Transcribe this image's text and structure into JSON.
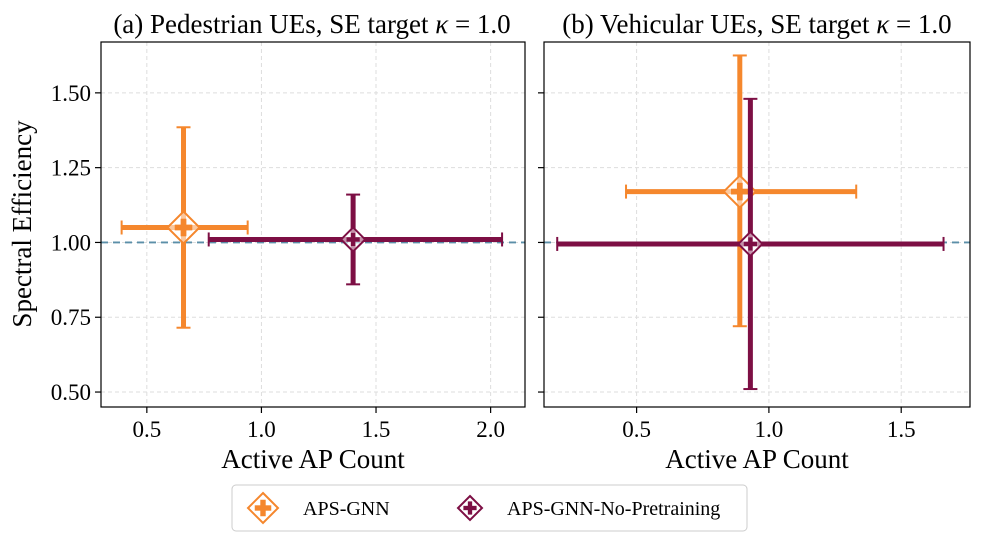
{
  "chart_data": [
    {
      "type": "scatter",
      "title": "(a) Pedestrian UEs, SE target κ = 1.0",
      "xlabel": "Active AP Count",
      "ylabel": "Spectral Efficiency",
      "xlim": [
        0.3,
        2.15
      ],
      "ylim": [
        0.45,
        1.67
      ],
      "xticks": [
        0.5,
        1.0,
        1.5,
        2.0
      ],
      "xtick_labels": [
        "0.5",
        "1.0",
        "1.5",
        "2.0"
      ],
      "yticks": [
        0.5,
        0.75,
        1.0,
        1.25,
        1.5
      ],
      "ytick_labels": [
        "0.50",
        "0.75",
        "1.00",
        "1.25",
        "1.50"
      ],
      "grid": true,
      "reference_line_y": 1.0,
      "series": [
        {
          "name": "APS-GNN",
          "x": 0.66,
          "y": 1.05,
          "x_err": [
            0.39,
            0.94
          ],
          "y_err": [
            0.715,
            1.385
          ],
          "color": "#f5872d",
          "marker": "diamond-cross-open",
          "marker_size": "large"
        },
        {
          "name": "APS-GNN-No-Pretraining",
          "x": 1.4,
          "y": 1.01,
          "x_err": [
            0.77,
            2.05
          ],
          "y_err": [
            0.86,
            1.16
          ],
          "color": "#7d0f44",
          "marker": "diamond-cross-open",
          "marker_size": "small"
        }
      ]
    },
    {
      "type": "scatter",
      "title": "(b) Vehicular UEs, SE target κ = 1.0",
      "xlabel": "Active AP Count",
      "ylabel": "",
      "xlim": [
        0.15,
        1.76
      ],
      "ylim": [
        0.45,
        1.67
      ],
      "xticks": [
        0.5,
        1.0,
        1.5
      ],
      "xtick_labels": [
        "0.5",
        "1.0",
        "1.5"
      ],
      "yticks": [
        0.5,
        0.75,
        1.0,
        1.25,
        1.5
      ],
      "ytick_labels": [],
      "grid": true,
      "reference_line_y": 1.0,
      "series": [
        {
          "name": "APS-GNN",
          "x": 0.89,
          "y": 1.17,
          "x_err": [
            0.46,
            1.33
          ],
          "y_err": [
            0.72,
            1.625
          ],
          "color": "#f5872d",
          "marker": "diamond-cross-open",
          "marker_size": "large"
        },
        {
          "name": "APS-GNN-No-Pretraining",
          "x": 0.93,
          "y": 0.995,
          "x_err": [
            0.2,
            1.66
          ],
          "y_err": [
            0.51,
            1.48
          ],
          "color": "#7d0f44",
          "marker": "diamond-cross-open",
          "marker_size": "small"
        }
      ]
    }
  ],
  "legend": {
    "placement": "bottom-center",
    "items": [
      {
        "label": "APS-GNN",
        "color": "#f5872d"
      },
      {
        "label": "APS-GNN-No-Pretraining",
        "color": "#7d0f44"
      }
    ]
  },
  "colors": {
    "reference_line": "#5b8fa8",
    "grid": "#dddddd",
    "axis": "#000000"
  }
}
